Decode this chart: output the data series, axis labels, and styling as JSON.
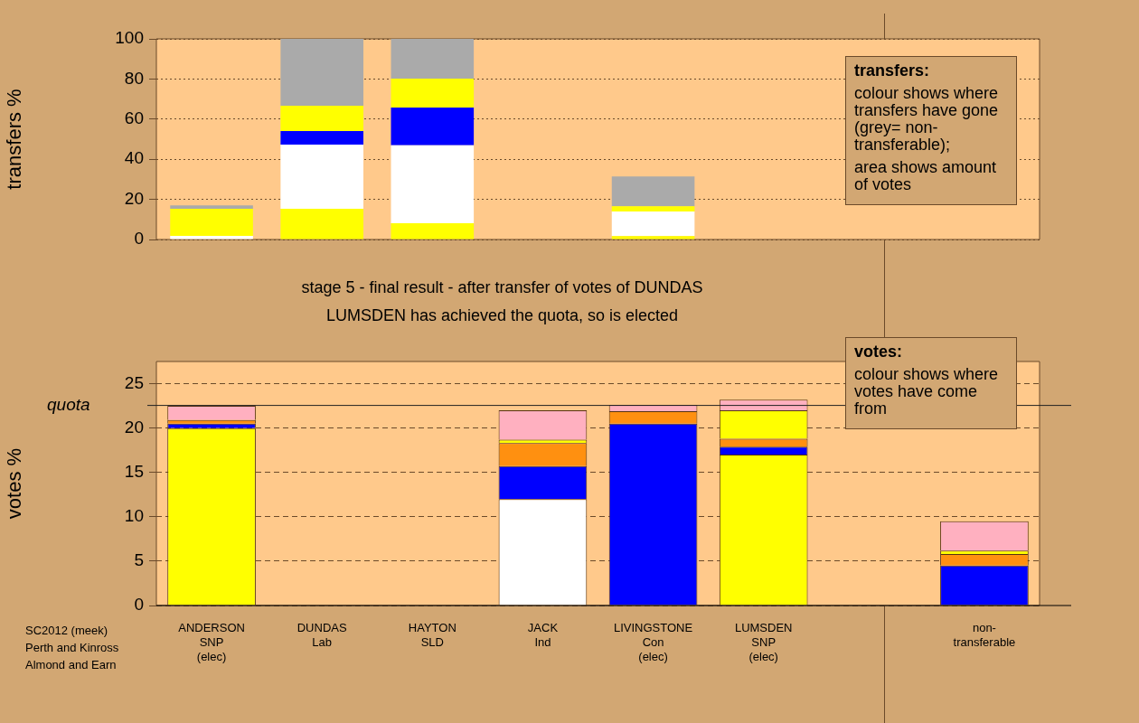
{
  "chart_data": [
    {
      "type": "bar",
      "stacked": true,
      "ylabel": "transfers %",
      "categories": [
        null,
        null,
        null,
        null,
        null,
        null,
        null,
        null
      ],
      "ylim": [
        0,
        100
      ],
      "yticks": [
        0,
        20,
        40,
        60,
        80,
        100
      ],
      "grid": "y",
      "tick_labels": "y",
      "annotations": [
        "transfers:",
        "colour shows where transfers have gone (grey= non-transferable);",
        "area shows amount of votes"
      ],
      "series": [
        {
          "color": "#ffff00",
          "values": [
            0,
            15.3,
            8.1,
            null,
            1.7,
            null,
            null,
            null
          ]
        },
        {
          "color": "#ffffff",
          "values": [
            1.8,
            32,
            38.9,
            null,
            12.3,
            null,
            null,
            null
          ]
        },
        {
          "color": "#0000ff",
          "values": [
            0,
            6.7,
            18.8,
            null,
            0,
            null,
            null,
            null
          ]
        },
        {
          "color": "#ffff00",
          "values": [
            13.5,
            12.7,
            14.4,
            null,
            2.6,
            null,
            null,
            null
          ]
        },
        {
          "color": "#aaaaaa",
          "values": [
            1.7,
            33.3,
            19.8,
            null,
            14.8,
            null,
            null,
            null
          ]
        }
      ]
    },
    {
      "type": "bar",
      "stacked": true,
      "title": "stage 5 - final result - after transfer of votes of DUNDAS",
      "subtitle": "LUMSDEN has achieved the quota, so is elected",
      "ylabel": "votes %",
      "categories": [
        "ANDERSON\nSNP\n(elec)",
        "DUNDAS\nLab",
        "HAYTON\nSLD",
        "JACK\nInd",
        "LIVINGSTONE\nCon\n(elec)",
        "LUMSDEN\nSNP\n(elec)",
        null,
        "non-\ntransferable"
      ],
      "ylim": [
        0,
        27.5
      ],
      "yticks": [
        0,
        5,
        10,
        15,
        20,
        25
      ],
      "grid": "y",
      "ref_lines": [
        {
          "axis": "y",
          "value": 22.55,
          "label": "quota"
        }
      ],
      "annotations": [
        "votes:",
        "colour shows where votes have come from",
        "SC2012 (meek)\nPerth and Kinross\nAlmond and Earn"
      ],
      "series": [
        {
          "colors": [
            "#ffff00",
            "#ff0000",
            "#ff9010",
            "#ffffff",
            "#0000ff",
            "#ffff00",
            "#ffffff",
            "#ffffff"
          ],
          "values": [
            20.0,
            0,
            0,
            12.0,
            20.5,
            17.0,
            null,
            0
          ]
        },
        {
          "color": "#0000ff",
          "values": [
            0.5,
            0,
            0,
            3.7,
            0,
            0.9,
            null,
            4.5
          ]
        },
        {
          "color": "#ff9010",
          "values": [
            0.4,
            0,
            0,
            2.6,
            1.4,
            0.9,
            null,
            1.3
          ]
        },
        {
          "color": "#ffff00",
          "values": [
            0,
            0,
            0,
            0.4,
            0,
            3.2,
            null,
            0.4
          ]
        },
        {
          "color": "#ffb0c0",
          "values": [
            1.6,
            0,
            0,
            3.3,
            0.7,
            1.2,
            null,
            3.3
          ]
        }
      ]
    }
  ]
}
